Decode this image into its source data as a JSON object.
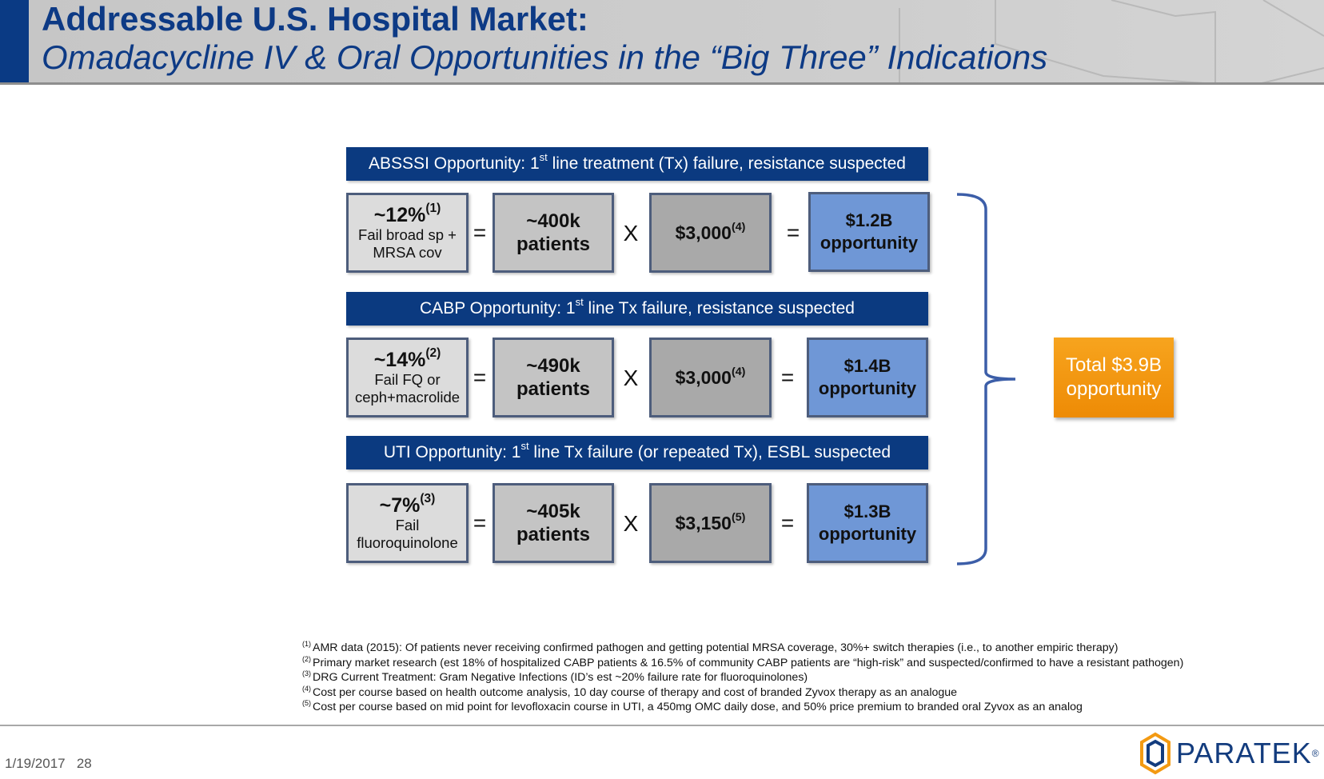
{
  "header": {
    "title": "Addressable U.S. Hospital Market:",
    "subtitle": "Omadacycline IV & Oral Opportunities in the “Big Three” Indications"
  },
  "rows": [
    {
      "banner_pre": "ABSSSI Opportunity:  1",
      "banner_sup": "st",
      "banner_post": " line treatment (Tx) failure, resistance suspected",
      "pct": "~12%",
      "pct_ref": "(1)",
      "pct_line1": "Fail broad sp +",
      "pct_line2": "MRSA cov",
      "patients_value": "~400k",
      "patients_label": "patients",
      "cost": "$3,000",
      "cost_ref": "(4)",
      "opp_value": "$1.2B",
      "opp_label": "opportunity"
    },
    {
      "banner_pre": "CABP Opportunity:  1",
      "banner_sup": "st",
      "banner_post": " line Tx failure, resistance suspected",
      "pct": "~14%",
      "pct_ref": "(2)",
      "pct_line1": "Fail FQ or",
      "pct_line2": "ceph+macrolide",
      "patients_value": "~490k",
      "patients_label": "patients",
      "cost": "$3,000",
      "cost_ref": "(4)",
      "opp_value": "$1.4B",
      "opp_label": "opportunity"
    },
    {
      "banner_pre": "UTI Opportunity:  1",
      "banner_sup": "st",
      "banner_post": " line Tx failure (or repeated Tx), ESBL suspected",
      "pct": "~7%",
      "pct_ref": "(3)",
      "pct_line1": "Fail",
      "pct_line2": "fluoroquinolone",
      "patients_value": "~405k",
      "patients_label": "patients",
      "cost": "$3,150",
      "cost_ref": "(5)",
      "opp_value": "$1.3B",
      "opp_label": "opportunity"
    }
  ],
  "operators": {
    "equals": "=",
    "times": "X"
  },
  "total": {
    "line1": "Total $3.9B",
    "line2": "opportunity"
  },
  "footnotes": [
    {
      "ref": "(1)",
      "text": "AMR data (2015):  Of patients never receiving confirmed pathogen and getting potential MRSA coverage, 30%+ switch therapies (i.e., to another empiric therapy)"
    },
    {
      "ref": "(2)",
      "text": "Primary market research (est 18% of hospitalized CABP patients & 16.5% of community CABP patients are “high-risk” and suspected/confirmed to have a resistant pathogen)"
    },
    {
      "ref": "(3)",
      "text": "DRG Current Treatment: Gram Negative Infections (ID’s est ~20% failure rate for fluoroquinolones)"
    },
    {
      "ref": "(4)",
      "text": "Cost per course based on health outcome analysis, 10 day course of therapy and cost of branded  Zyvox therapy as an analogue"
    },
    {
      "ref": "(5)",
      "text": "Cost per course based on mid point for levofloxacin  course in UTI, a 450mg OMC  daily dose, and 50% price premium to branded oral Zyvox as an analog"
    }
  ],
  "footer": {
    "date": "1/19/2017",
    "page": "28",
    "logo_text": "PARATEK",
    "logo_mark": "®"
  },
  "colors": {
    "navy": "#0b3a80",
    "orange": "#f39a12",
    "blue_box": "#6f97d6",
    "header_grey": "#c9c9c9"
  }
}
